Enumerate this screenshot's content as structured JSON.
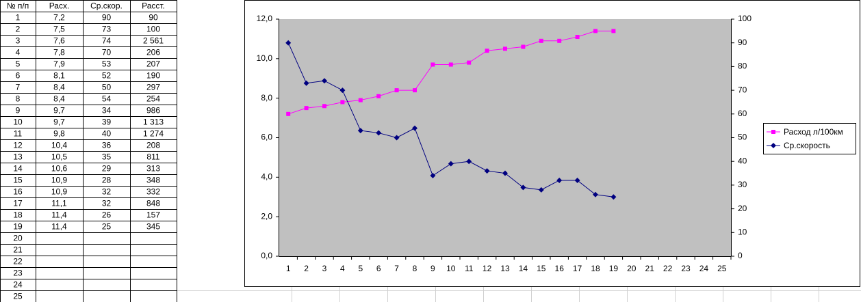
{
  "table": {
    "columns": [
      "№ п/п",
      "Расх.",
      "Ср.скор.",
      "Расст."
    ],
    "rows": [
      [
        "1",
        "7,2",
        "90",
        "90"
      ],
      [
        "2",
        "7,5",
        "73",
        "100"
      ],
      [
        "3",
        "7,6",
        "74",
        "2 561"
      ],
      [
        "4",
        "7,8",
        "70",
        "206"
      ],
      [
        "5",
        "7,9",
        "53",
        "207"
      ],
      [
        "6",
        "8,1",
        "52",
        "190"
      ],
      [
        "7",
        "8,4",
        "50",
        "297"
      ],
      [
        "8",
        "8,4",
        "54",
        "254"
      ],
      [
        "9",
        "9,7",
        "34",
        "986"
      ],
      [
        "10",
        "9,7",
        "39",
        "1 313"
      ],
      [
        "11",
        "9,8",
        "40",
        "1 274"
      ],
      [
        "12",
        "10,4",
        "36",
        "208"
      ],
      [
        "13",
        "10,5",
        "35",
        "811"
      ],
      [
        "14",
        "10,6",
        "29",
        "313"
      ],
      [
        "15",
        "10,9",
        "28",
        "348"
      ],
      [
        "16",
        "10,9",
        "32",
        "332"
      ],
      [
        "17",
        "11,1",
        "32",
        "848"
      ],
      [
        "18",
        "11,4",
        "26",
        "157"
      ],
      [
        "19",
        "11,4",
        "25",
        "345"
      ],
      [
        "20"
      ],
      [
        "21"
      ],
      [
        "22"
      ],
      [
        "23"
      ],
      [
        "24"
      ],
      [
        "25"
      ]
    ]
  },
  "chart_data": {
    "type": "line",
    "categories": [
      1,
      2,
      3,
      4,
      5,
      6,
      7,
      8,
      9,
      10,
      11,
      12,
      13,
      14,
      15,
      16,
      17,
      18,
      19,
      20,
      21,
      22,
      23,
      24,
      25
    ],
    "series": [
      {
        "name": "Расход л/100км",
        "color": "#ff00ff",
        "marker": "square",
        "values": [
          7.2,
          7.5,
          7.6,
          7.8,
          7.9,
          8.1,
          8.4,
          8.4,
          9.7,
          9.7,
          9.8,
          10.4,
          10.5,
          10.6,
          10.9,
          10.9,
          11.1,
          11.4,
          11.4,
          null,
          null,
          null,
          null,
          null,
          null
        ]
      },
      {
        "name": "Ср.скорость",
        "color": "#000080",
        "marker": "diamond",
        "axis": "y2",
        "values": [
          90,
          73,
          74,
          70,
          53,
          52,
          50,
          54,
          34,
          39,
          40,
          36,
          35,
          29,
          28,
          32,
          32,
          26,
          25,
          null,
          null,
          null,
          null,
          null,
          null
        ]
      }
    ],
    "ylim": [
      0,
      12
    ],
    "yticks": [
      {
        "value": 0,
        "label": "0,0"
      },
      {
        "value": 2,
        "label": "2,0"
      },
      {
        "value": 4,
        "label": "4,0"
      },
      {
        "value": 6,
        "label": "6,0"
      },
      {
        "value": 8,
        "label": "8,0"
      },
      {
        "value": 10,
        "label": "10,0"
      },
      {
        "value": 12,
        "label": "12,0"
      }
    ],
    "y2lim": [
      0,
      100
    ],
    "y2ticks": [
      0,
      10,
      20,
      30,
      40,
      50,
      60,
      70,
      80,
      90,
      100
    ],
    "plot_background": "#c0c0c0",
    "legend": "right"
  }
}
